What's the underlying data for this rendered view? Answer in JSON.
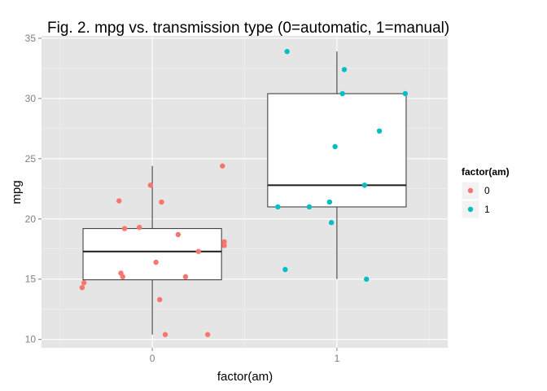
{
  "chart_data": {
    "type": "boxplot+jitter",
    "title": "Fig. 2. mpg vs. transmission type (0=automatic, 1=manual)",
    "xlabel": "factor(am)",
    "ylabel": "mpg",
    "categories": [
      "0",
      "1"
    ],
    "ylim": [
      9.3,
      35.2
    ],
    "y_ticks": [
      10,
      15,
      20,
      25,
      30,
      35
    ],
    "grid": true,
    "legend": {
      "title": "factor(am)",
      "position": "right",
      "entries": [
        {
          "label": "0",
          "color": "#f8766d"
        },
        {
          "label": "1",
          "color": "#00bfc4"
        }
      ]
    },
    "boxes": [
      {
        "category": "0",
        "min": 10.4,
        "q1": 14.95,
        "median": 17.3,
        "q3": 19.2,
        "max": 24.4
      },
      {
        "category": "1",
        "min": 15.0,
        "q1": 21.0,
        "median": 22.8,
        "q3": 30.4,
        "max": 33.9
      }
    ],
    "points": [
      {
        "category": "0",
        "series": [
          {
            "x": -0.38,
            "y": 14.3
          },
          {
            "x": -0.37,
            "y": 14.7
          },
          {
            "x": -0.18,
            "y": 21.5
          },
          {
            "x": -0.17,
            "y": 15.5
          },
          {
            "x": -0.16,
            "y": 15.2
          },
          {
            "x": -0.15,
            "y": 19.2
          },
          {
            "x": -0.07,
            "y": 19.3
          },
          {
            "x": -0.01,
            "y": 22.8
          },
          {
            "x": 0.02,
            "y": 16.4
          },
          {
            "x": 0.04,
            "y": 13.3
          },
          {
            "x": 0.05,
            "y": 21.4
          },
          {
            "x": 0.07,
            "y": 10.4
          },
          {
            "x": 0.14,
            "y": 18.7
          },
          {
            "x": 0.18,
            "y": 15.2
          },
          {
            "x": 0.25,
            "y": 17.3
          },
          {
            "x": 0.3,
            "y": 10.4
          },
          {
            "x": 0.38,
            "y": 24.4
          },
          {
            "x": 0.39,
            "y": 17.8
          },
          {
            "x": 0.39,
            "y": 18.1
          }
        ]
      },
      {
        "category": "1",
        "series": [
          {
            "x": 0.68,
            "y": 21.0
          },
          {
            "x": 0.72,
            "y": 15.8
          },
          {
            "x": 0.73,
            "y": 33.9
          },
          {
            "x": 0.85,
            "y": 21.0
          },
          {
            "x": 0.96,
            "y": 21.4
          },
          {
            "x": 0.97,
            "y": 19.7
          },
          {
            "x": 0.99,
            "y": 26.0
          },
          {
            "x": 1.03,
            "y": 30.4
          },
          {
            "x": 1.04,
            "y": 32.4
          },
          {
            "x": 1.15,
            "y": 22.8
          },
          {
            "x": 1.16,
            "y": 15.0
          },
          {
            "x": 1.23,
            "y": 27.3
          },
          {
            "x": 1.37,
            "y": 30.4
          }
        ]
      }
    ]
  }
}
